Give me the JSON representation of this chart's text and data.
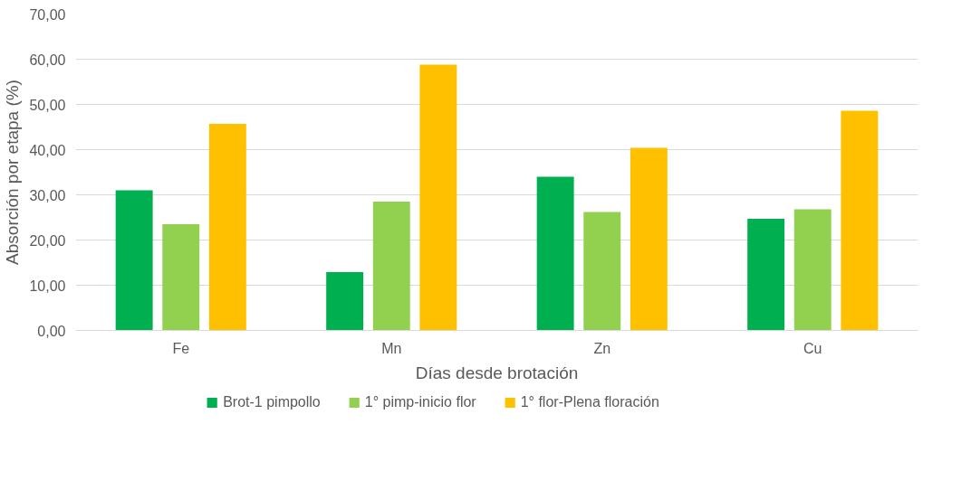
{
  "chart_data": {
    "type": "bar",
    "xlabel": "Días desde brotación",
    "ylabel": "Absorción por etapa (%)",
    "categories": [
      "Fe",
      "Mn",
      "Zn",
      "Cu"
    ],
    "series": [
      {
        "name": "Brot-1 pimpollo",
        "color": "#00b050",
        "values": [
          31.0,
          12.9,
          34.0,
          24.7
        ]
      },
      {
        "name": "1° pimp-inicio flor",
        "color": "#92d050",
        "values": [
          23.5,
          28.5,
          26.2,
          26.8
        ]
      },
      {
        "name": "1° flor-Plena floración",
        "color": "#ffc000",
        "values": [
          45.7,
          58.8,
          40.4,
          48.6
        ]
      }
    ],
    "ylim": [
      0,
      70
    ],
    "yticks": [
      {
        "value": 0,
        "label": "0,00"
      },
      {
        "value": 10,
        "label": "10,00"
      },
      {
        "value": 20,
        "label": "20,00"
      },
      {
        "value": 30,
        "label": "30,00"
      },
      {
        "value": 40,
        "label": "40,00"
      },
      {
        "value": 50,
        "label": "50,00"
      },
      {
        "value": 60,
        "label": "60,00"
      },
      {
        "value": 70,
        "label": "70,00"
      }
    ],
    "grid": "y",
    "legend": "bottom"
  }
}
